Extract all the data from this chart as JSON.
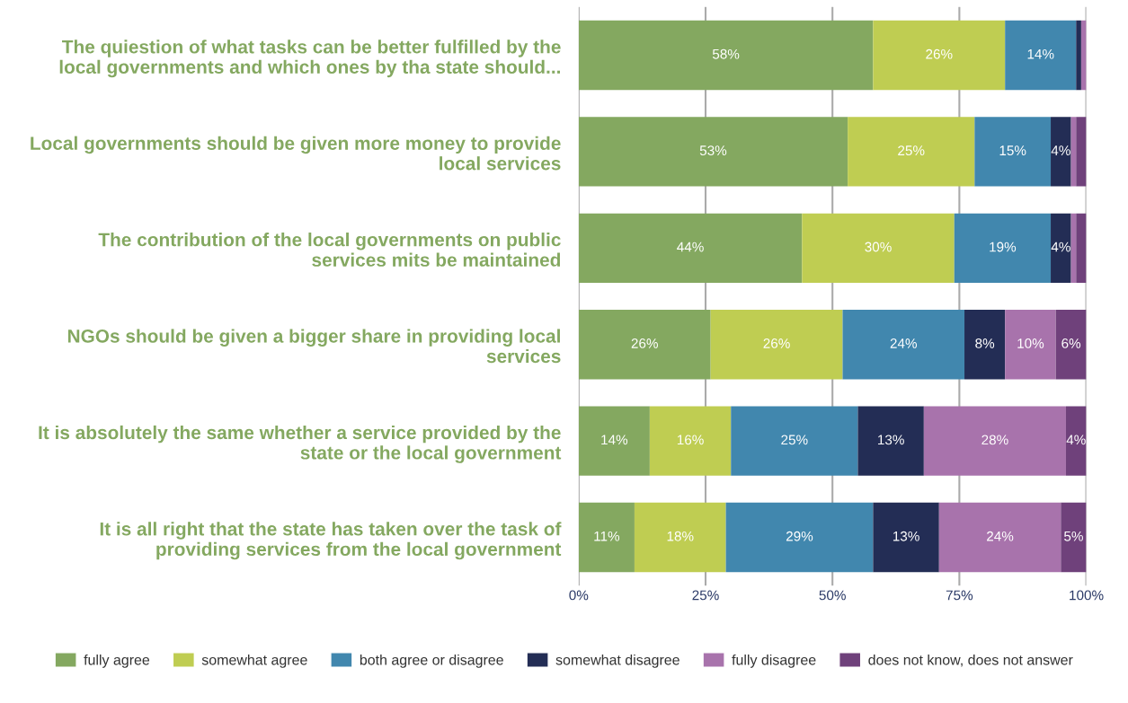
{
  "chart_data": {
    "type": "bar",
    "orientation": "horizontal",
    "stacked": true,
    "categories": [
      "The quiestion of what tasks can be better fulfilled by the\nlocal governments and which ones by tha state should...",
      "Local governments should be given more money to provide\nlocal services",
      "The contribution of the local governments on public\nservices mits be maintained",
      "NGOs should be given a bigger share in providing local\nservices",
      "It is absolutely the same whether a service provided by the\nstate or the local government",
      "It is all right that the state has taken over the task of\nproviding services from the local government"
    ],
    "series": [
      {
        "name": "fully agree",
        "color": "#84a860",
        "values": [
          58,
          53,
          44,
          26,
          14,
          11
        ],
        "value_labels": [
          "58%",
          "53%",
          "44%",
          "26%",
          "14%",
          "11%"
        ]
      },
      {
        "name": "somewhat agree",
        "color": "#bfcd52",
        "values": [
          26,
          25,
          30,
          26,
          16,
          18
        ],
        "value_labels": [
          "26%",
          "25%",
          "30%",
          "26%",
          "16%",
          "18%"
        ]
      },
      {
        "name": "both agree or disagree",
        "color": "#4187ae",
        "values": [
          14,
          15,
          19,
          24,
          25,
          29
        ],
        "value_labels": [
          "14%",
          "15%",
          "19%",
          "24%",
          "25%",
          "29%"
        ]
      },
      {
        "name": "somewhat disagree",
        "color": "#232d55",
        "values": [
          1,
          4,
          4,
          8,
          13,
          13
        ],
        "value_labels": [
          null,
          "4%",
          "4%",
          "8%",
          "13%",
          "13%"
        ]
      },
      {
        "name": "fully disagree",
        "color": "#a873ac",
        "values": [
          1,
          1,
          1,
          10,
          28,
          24
        ],
        "value_labels": [
          null,
          null,
          null,
          "10%",
          "28%",
          "24%"
        ]
      },
      {
        "name": "does not know, does not answer",
        "color": "#6f417b",
        "values": [
          0,
          2,
          2,
          6,
          4,
          5
        ],
        "value_labels": [
          null,
          null,
          null,
          "6%",
          "4%",
          "5%"
        ]
      }
    ],
    "xlim": [
      0,
      100
    ],
    "xticks": [
      {
        "value": 0,
        "label": "0%"
      },
      {
        "value": 25,
        "label": "25%"
      },
      {
        "value": 50,
        "label": "50%"
      },
      {
        "value": 75,
        "label": "75%"
      },
      {
        "value": 100,
        "label": "100%"
      }
    ],
    "grid": "x",
    "legend": "bottom"
  }
}
